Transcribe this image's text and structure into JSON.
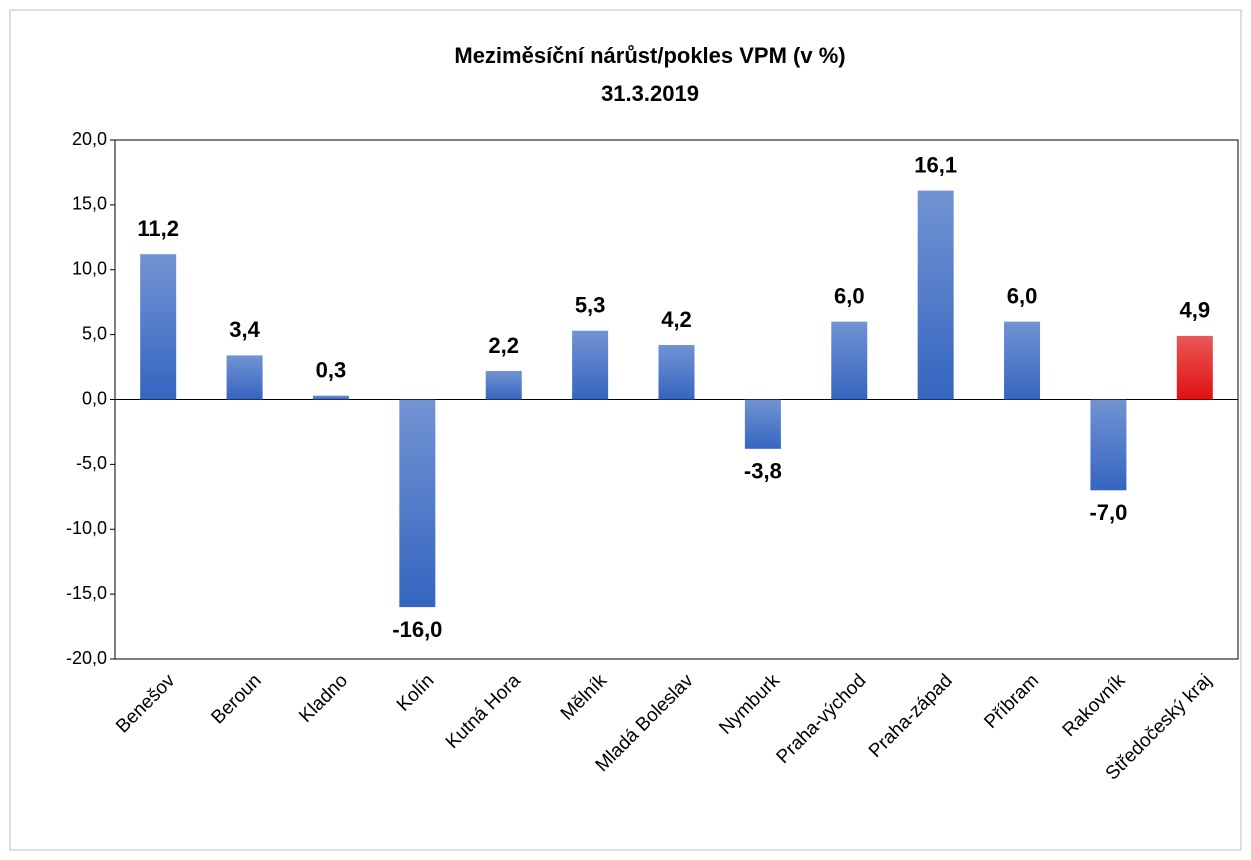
{
  "chart_data": {
    "type": "bar",
    "title": "Meziměsíční nárůst/pokles VPM (v %)",
    "subtitle": "31.3.2019",
    "categories": [
      "Benešov",
      "Beroun",
      "Kladno",
      "Kolín",
      "Kutná Hora",
      "Mělník",
      "Mladá Boleslav",
      "Nymburk",
      "Praha-východ",
      "Praha-západ",
      "Příbram",
      "Rakovník",
      "Středočeský kraj"
    ],
    "values": [
      11.2,
      3.4,
      0.3,
      -16.0,
      2.2,
      5.3,
      4.2,
      -3.8,
      6.0,
      16.1,
      6.0,
      -7.0,
      4.9
    ],
    "value_labels": [
      "11,2",
      "3,4",
      "0,3",
      "-16,0",
      "2,2",
      "5,3",
      "4,2",
      "-3,8",
      "6,0",
      "16,1",
      "6,0",
      "-7,0",
      "4,9"
    ],
    "colors": [
      "#3565c0",
      "#3565c0",
      "#3565c0",
      "#3565c0",
      "#3565c0",
      "#3565c0",
      "#3565c0",
      "#3565c0",
      "#3565c0",
      "#3565c0",
      "#3565c0",
      "#3565c0",
      "#e01010"
    ],
    "ylim": [
      -20,
      20
    ],
    "yticks": [
      {
        "value": -20,
        "label": "-20,0"
      },
      {
        "value": -15,
        "label": "-15,0"
      },
      {
        "value": -10,
        "label": "-10,0"
      },
      {
        "value": -5,
        "label": "-5,0"
      },
      {
        "value": 0,
        "label": "0,0"
      },
      {
        "value": 5,
        "label": "5,0"
      },
      {
        "value": 10,
        "label": "10,0"
      },
      {
        "value": 15,
        "label": "15,0"
      },
      {
        "value": 20,
        "label": "20,0"
      }
    ],
    "grid": false
  }
}
